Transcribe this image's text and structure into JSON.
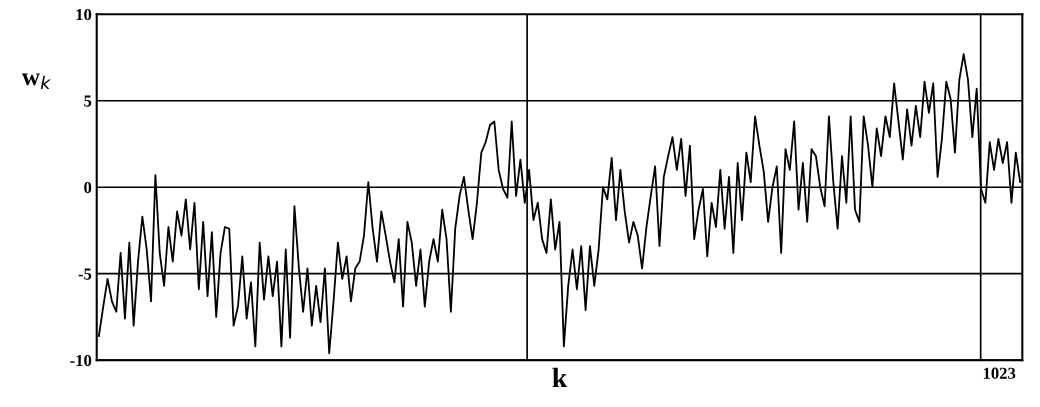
{
  "chart_data": {
    "type": "line",
    "xlabel": "k",
    "ylabel": "w$_{k}$",
    "categories": [
      null,
      null,
      null,
      null,
      null,
      null,
      null,
      null,
      null,
      null,
      null,
      null,
      null,
      null,
      null,
      null,
      null,
      null,
      null,
      null,
      null,
      null,
      null,
      null,
      null,
      null,
      null,
      null,
      null,
      null,
      null,
      null,
      null,
      null,
      null,
      null,
      null,
      null,
      null,
      null,
      null,
      null,
      null,
      null,
      null,
      null,
      null,
      null,
      null,
      null,
      null,
      null,
      null,
      null,
      null,
      null,
      null,
      null,
      null,
      null,
      null,
      null,
      null,
      null,
      null,
      null,
      null,
      null,
      null,
      null,
      null,
      null,
      null,
      null,
      null,
      null,
      null,
      null,
      null,
      null,
      null,
      null,
      null,
      null,
      null,
      null,
      null,
      null,
      null,
      null,
      null,
      null,
      null,
      null,
      null,
      null,
      null,
      null,
      null,
      null,
      null,
      null,
      null,
      null,
      null,
      null,
      null,
      null,
      null,
      null,
      null,
      null,
      null,
      null,
      null,
      null,
      null,
      null,
      null,
      null,
      null,
      null,
      null,
      null,
      null,
      null,
      null,
      null,
      null,
      null,
      null,
      null,
      null,
      null,
      null,
      null,
      null,
      null,
      null,
      null,
      null,
      null,
      null,
      null,
      null,
      null,
      null,
      null,
      null,
      null,
      null,
      null,
      null,
      null,
      null,
      null,
      null,
      null,
      null,
      null,
      null,
      null,
      null,
      null,
      null,
      null,
      null,
      null,
      null,
      null,
      null,
      null,
      null,
      null,
      null,
      null,
      null,
      null,
      null,
      null,
      null,
      null,
      null,
      null,
      null,
      null,
      null,
      null,
      null,
      null,
      null,
      null,
      null,
      null,
      null,
      null,
      null,
      null,
      null,
      null,
      null,
      null,
      null,
      null,
      null,
      null,
      null,
      null,
      null,
      null,
      null,
      null,
      null
    ],
    "ylim": [
      -10,
      10
    ],
    "yticks": [
      -10,
      -5,
      0,
      5,
      10
    ],
    "grid": true,
    "legend": false,
    "marker": "none",
    "line_style": "solid",
    "annotations": [
      "1023"
    ],
    "series": [
      {
        "color": "#000000",
        "values": [
          -8.6,
          -6.9,
          -5.3,
          -6.6,
          -7.2,
          -3.8,
          -7.6,
          -3.2,
          -8.0,
          -4.3,
          -1.7,
          -3.6,
          -6.6,
          0.7,
          -3.8,
          -5.7,
          -2.3,
          -4.3,
          -1.4,
          -2.8,
          -0.7,
          -3.6,
          -0.9,
          -5.9,
          -2.0,
          -6.3,
          -2.6,
          -7.5,
          -3.8,
          -2.3,
          -2.4,
          -8.0,
          -6.9,
          -4.0,
          -7.6,
          -5.5,
          -9.2,
          -3.2,
          -6.5,
          -4.0,
          -6.3,
          -4.3,
          -9.2,
          -3.6,
          -8.7,
          -1.1,
          -4.6,
          -7.2,
          -4.7,
          -8.0,
          -5.7,
          -7.8,
          -4.7,
          -9.6,
          -6.6,
          -3.2,
          -5.3,
          -4.0,
          -6.6,
          -4.7,
          -4.3,
          -2.8,
          0.3,
          -2.4,
          -4.3,
          -1.4,
          -2.8,
          -4.3,
          -5.5,
          -3.0,
          -6.9,
          -2.0,
          -3.2,
          -5.7,
          -3.6,
          -6.9,
          -4.3,
          -3.0,
          -4.3,
          -1.3,
          -3.0,
          -7.2,
          -2.4,
          -0.5,
          0.6,
          -1.3,
          -3.0,
          -0.9,
          2.0,
          2.6,
          3.6,
          3.8,
          1.0,
          -0.1,
          -0.6,
          3.8,
          -0.5,
          1.6,
          -0.9,
          1.0,
          -1.9,
          -0.9,
          -3.0,
          -3.8,
          -0.7,
          -3.6,
          -2.0,
          -9.2,
          -5.7,
          -3.6,
          -5.9,
          -3.4,
          -7.1,
          -3.4,
          -5.7,
          -3.6,
          0.0,
          -0.7,
          1.7,
          -1.9,
          1.0,
          -1.4,
          -3.2,
          -2.0,
          -2.8,
          -4.7,
          -2.3,
          -0.5,
          1.2,
          -3.4,
          0.6,
          1.8,
          2.9,
          1.0,
          2.8,
          -0.5,
          2.4,
          -3.0,
          -1.3,
          -0.1,
          -4.0,
          -0.9,
          -2.3,
          1.0,
          -2.4,
          0.6,
          -3.8,
          1.4,
          -1.9,
          2.0,
          0.3,
          4.1,
          2.4,
          0.9,
          -2.0,
          0.0,
          1.2,
          -3.8,
          2.2,
          1.0,
          3.8,
          -1.3,
          1.4,
          -2.0,
          2.2,
          1.8,
          0.0,
          -1.1,
          4.1,
          0.3,
          -2.4,
          1.8,
          -0.9,
          4.1,
          -1.3,
          -2.0,
          4.1,
          2.4,
          0.0,
          3.4,
          1.8,
          4.1,
          2.9,
          6.0,
          3.8,
          1.6,
          4.5,
          2.4,
          4.7,
          2.9,
          6.1,
          4.3,
          6.0,
          0.6,
          2.8,
          6.1,
          5.1,
          2.0,
          6.2,
          7.7,
          6.2,
          2.9,
          5.7,
          -0.1,
          -0.9,
          2.6,
          1.0,
          2.8,
          1.4,
          2.6,
          -0.9,
          2.0,
          0.3
        ]
      }
    ]
  }
}
